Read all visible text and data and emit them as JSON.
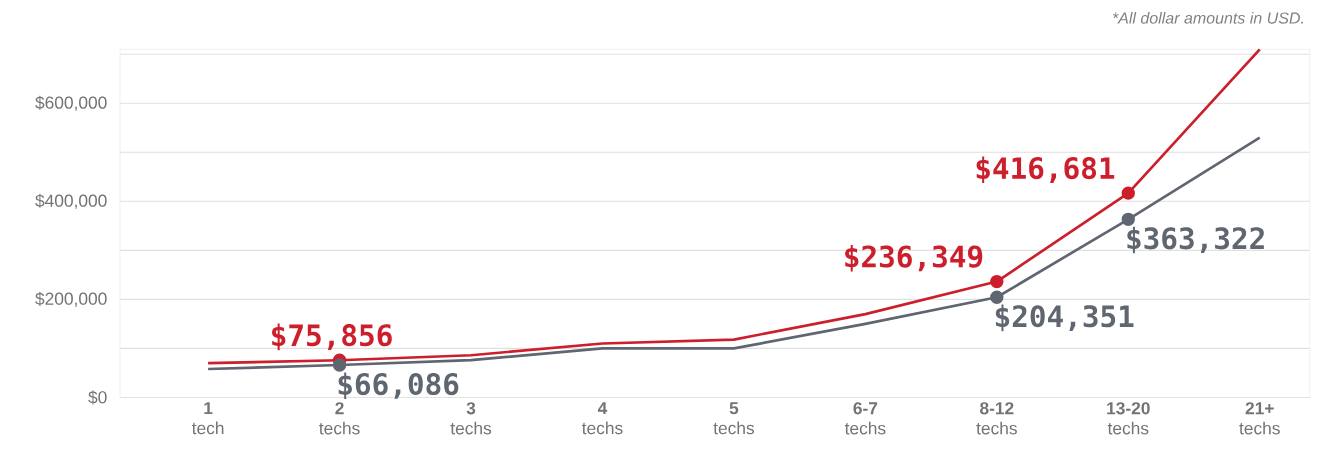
{
  "chart_data": {
    "type": "line",
    "categories": [
      "**1** tech",
      "**2** techs",
      "**3** techs",
      "**4** techs",
      "**5** techs",
      "**6-7** techs",
      "**8-12** techs",
      "**13-20** techs",
      "**21+** techs"
    ],
    "series": [
      {
        "color": "#cc1f2b",
        "values": [
          70000,
          75856,
          86000,
          110000,
          118000,
          170000,
          236349,
          416681,
          710000
        ],
        "value_labels": [
          null,
          "$75,856",
          null,
          null,
          null,
          null,
          "$236,349",
          "$416,681",
          null
        ]
      },
      {
        "color": "#5f6670",
        "values": [
          58000,
          66086,
          76000,
          100000,
          100000,
          150000,
          204351,
          363322,
          530000
        ],
        "value_labels": [
          null,
          "$66,086",
          null,
          null,
          null,
          null,
          "$204,351",
          "$363,322",
          null
        ]
      }
    ],
    "ylim": [
      0,
      710000
    ],
    "yticks": [
      {
        "value": 0,
        "label": "$0"
      },
      {
        "value": 100000,
        "label": null
      },
      {
        "value": 200000,
        "label": "$200,000"
      },
      {
        "value": 300000,
        "label": null
      },
      {
        "value": 400000,
        "label": "$400,000"
      },
      {
        "value": 500000,
        "label": null
      },
      {
        "value": 600000,
        "label": "$600,000"
      },
      {
        "value": 700000,
        "label": null
      }
    ],
    "grid": "y",
    "line_style": "solid",
    "annotations": [
      "*All dollar amounts in USD."
    ]
  }
}
